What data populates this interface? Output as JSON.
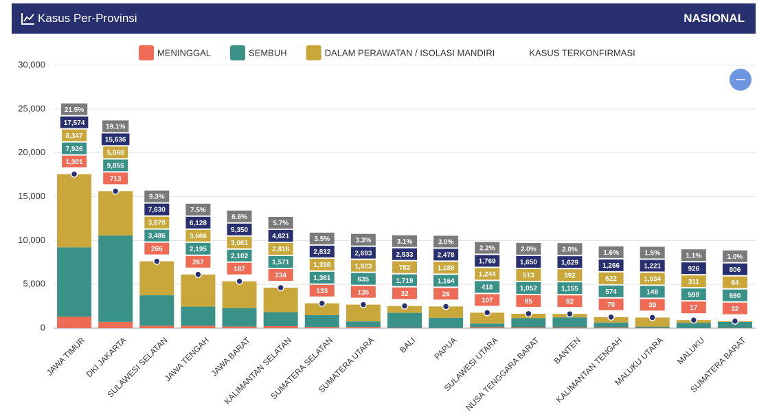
{
  "header": {
    "title": "Kasus Per-Provinsi",
    "scope": "NASIONAL"
  },
  "chart_data": {
    "type": "bar",
    "stacked": true,
    "categories": [
      "JAWA TIMUR",
      "DKI JAKARTA",
      "SULAWESI SELATAN",
      "JAWA TENGAH",
      "JAWA BARAT",
      "KALIMANTAN SELATAN",
      "SUMATERA SELATAN",
      "SUMATERA UTARA",
      "BALI",
      "PAPUA",
      "SULAWESI UTARA",
      "NUSA TENGGARA BARAT",
      "BANTEN",
      "KALIMANTAN TENGAH",
      "MALUKU UTARA",
      "MALUKU",
      "SUMATERA BARAT"
    ],
    "series": [
      {
        "name": "MENINGGAL",
        "color": "#ee6c56",
        "values": [
          1301,
          713,
          266,
          267,
          187,
          234,
          133,
          135,
          32,
          26,
          107,
          85,
          82,
          70,
          39,
          17,
          32
        ],
        "value_labels": [
          "1,301",
          "713",
          "266",
          "267",
          "187",
          "234",
          "133",
          "135",
          "32",
          "26",
          "107",
          "85",
          "82",
          "70",
          "39",
          "17",
          "32"
        ]
      },
      {
        "name": "SEMBUH",
        "color": "#3a9187",
        "values": [
          7926,
          9855,
          3486,
          2195,
          2102,
          1571,
          1361,
          635,
          1719,
          1164,
          418,
          1052,
          1155,
          574,
          148,
          598,
          690
        ],
        "value_labels": [
          "7,926",
          "9,855",
          "3,486",
          "2,195",
          "2,102",
          "1,571",
          "1,361",
          "635",
          "1,719",
          "1,164",
          "418",
          "1,052",
          "1,155",
          "574",
          "148",
          "598",
          "690"
        ]
      },
      {
        "name": "DALAM PERAWATAN / ISOLASI MANDIRI",
        "color": "#c9a73b",
        "values": [
          8347,
          5068,
          3878,
          3666,
          3061,
          2816,
          1338,
          1923,
          782,
          1288,
          1244,
          513,
          392,
          622,
          1034,
          311,
          84
        ],
        "value_labels": [
          "8,347",
          "5,068",
          "3,878",
          "3,666",
          "3,061",
          "2,816",
          "1,338",
          "1,923",
          "782",
          "1,288",
          "1,244",
          "513",
          "392",
          "622",
          "1,034",
          "311",
          "84"
        ]
      },
      {
        "name": "KASUS TERKONFIRMASI",
        "type": "line",
        "color": "#28306f",
        "values": [
          17574,
          15636,
          7630,
          6128,
          5350,
          4621,
          2832,
          2693,
          2533,
          2478,
          1769,
          1650,
          1629,
          1266,
          1221,
          926,
          806
        ],
        "value_labels": [
          "17,574",
          "15,636",
          "7,630",
          "6,128",
          "5,350",
          "4,621",
          "2,832",
          "2,693",
          "2,533",
          "2,478",
          "1,769",
          "1,650",
          "1,629",
          "1,266",
          "1,221",
          "926",
          "806"
        ]
      }
    ],
    "share": {
      "color": "#7a7a7a",
      "values": [
        21.5,
        19.1,
        9.3,
        7.5,
        6.6,
        5.7,
        3.5,
        3.3,
        3.1,
        3.0,
        2.2,
        2.0,
        2.0,
        1.6,
        1.5,
        1.1,
        1.0
      ],
      "value_labels": [
        "21.5%",
        "19.1%",
        "9.3%",
        "7.5%",
        "6.6%",
        "5.7%",
        "3.5%",
        "3.3%",
        "3.1%",
        "3.0%",
        "2.2%",
        "2.0%",
        "2.0%",
        "1.6%",
        "1.5%",
        "1.1%",
        "1.0%"
      ]
    },
    "ylim": [
      0,
      30000
    ],
    "yticks": [
      0,
      {
        "value": 5000,
        "label": "5,000"
      },
      {
        "value": 10000,
        "label": "10,000"
      },
      {
        "value": 15000,
        "label": "15,000"
      },
      {
        "value": 20000,
        "label": "20,000"
      },
      {
        "value": 25000,
        "label": "25,000"
      },
      {
        "value": 30000,
        "label": "30,000"
      }
    ],
    "grid": true
  }
}
